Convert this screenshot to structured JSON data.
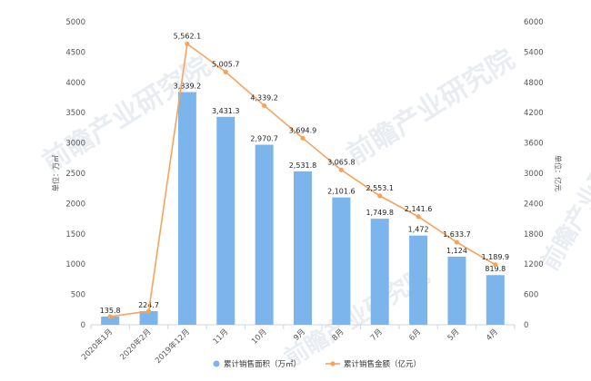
{
  "chart_data": {
    "type": "bar",
    "categories": [
      "2020年1月",
      "2020年2月",
      "2019年12月",
      "11月",
      "10月",
      "9月",
      "8月",
      "7月",
      "6月",
      "5月",
      "4月"
    ],
    "series": [
      {
        "name": "累计销售面积（万㎡）",
        "type": "bar",
        "axis": "left",
        "color": "#7cb5ec",
        "values": [
          135.8,
          224.7,
          3839.2,
          3431.3,
          2970.7,
          2531.8,
          2101.6,
          1749.8,
          1472,
          1124,
          819.8
        ],
        "labels": [
          "135.8",
          "224.7",
          "3,839.2",
          "3,431.3",
          "2,970.7",
          "2,531.8",
          "2,101.6",
          "1,749.8",
          "1,472",
          "1,124",
          "819.8"
        ]
      },
      {
        "name": "累计销售金额（亿元）",
        "type": "line",
        "axis": "right",
        "color": "#f7a35c",
        "values": [
          null,
          null,
          5562.1,
          5005.7,
          4339.2,
          3694.9,
          3065.8,
          2553.1,
          2141.6,
          1633.7,
          1189.9
        ],
        "labels": [
          "",
          "",
          "5,562.1",
          "5,005.7",
          "4,339.2",
          "3,694.9",
          "3,065.8",
          "2,553.1",
          "2,141.6",
          "1,633.7",
          "1,189.9"
        ]
      }
    ],
    "ylabel_left": "单位：万㎡",
    "ylabel_right": "单位：亿元",
    "ylim_left": [
      0,
      5000
    ],
    "yticks_left": [
      0,
      500,
      1000,
      1500,
      2000,
      2500,
      3000,
      3500,
      4000,
      4500,
      5000
    ],
    "ylim_right": [
      0,
      6000
    ],
    "yticks_right": [
      0,
      600,
      1200,
      1800,
      2400,
      3000,
      3600,
      4200,
      4800,
      5400,
      6000
    ],
    "grid": false,
    "legend_position": "bottom-center"
  },
  "watermark": {
    "text": "前瞻产业研究院",
    "color": "#e9edf2"
  }
}
